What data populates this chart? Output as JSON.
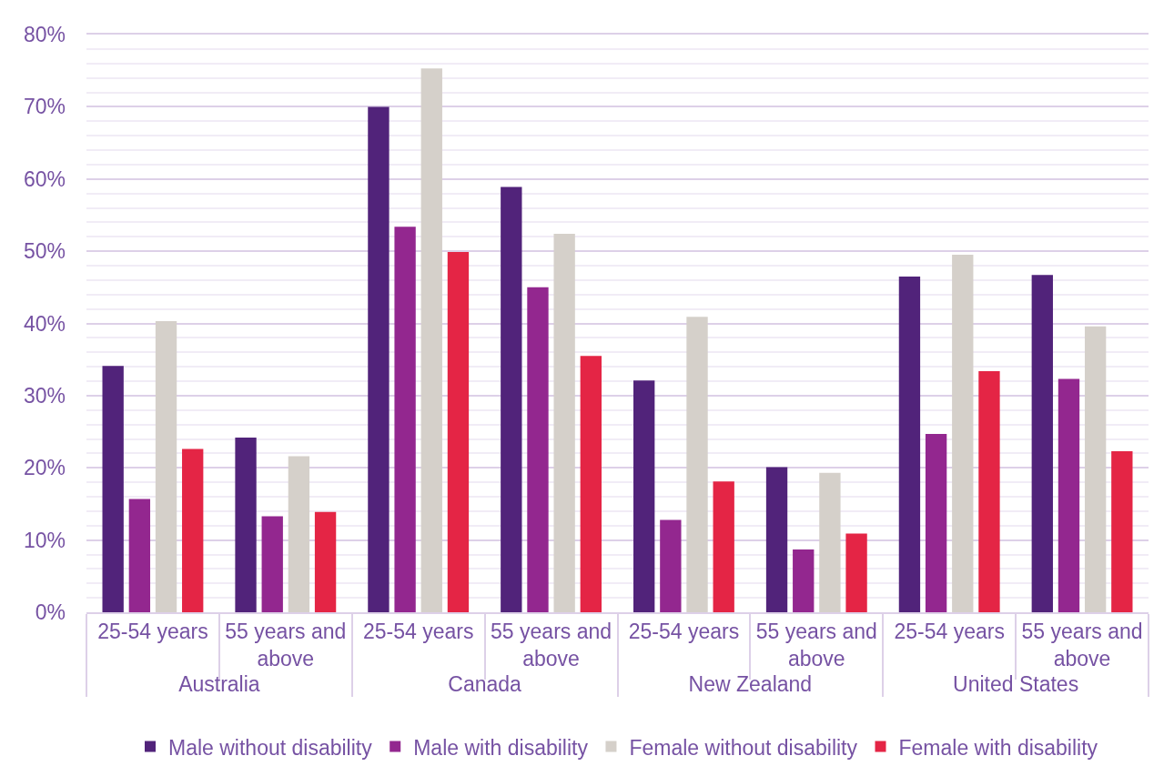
{
  "chart_data": {
    "type": "bar",
    "categories": [
      "25-54 years",
      "55 years and above",
      "25-54 years",
      "55 years and above",
      "25-54 years",
      "55 years and above",
      "25-54 years",
      "55 years and above"
    ],
    "annotations": [
      "Australia",
      "Canada",
      "New Zealand",
      "United States"
    ],
    "series": [
      {
        "name": "Male without disability",
        "color": "#51237a",
        "values": [
          34.1,
          24.2,
          70.0,
          58.9,
          32.1,
          20.1,
          46.5,
          46.7
        ]
      },
      {
        "name": "Male with disability",
        "color": "#93278f",
        "values": [
          15.7,
          13.3,
          53.4,
          45.0,
          12.8,
          8.7,
          24.7,
          32.3
        ]
      },
      {
        "name": "Female without disability",
        "color": "#d5d0ca",
        "values": [
          40.3,
          21.6,
          75.3,
          52.4,
          40.9,
          19.3,
          49.5,
          39.6
        ]
      },
      {
        "name": "Female with disability",
        "color": "#e42545",
        "values": [
          22.6,
          13.9,
          49.9,
          35.5,
          18.1,
          10.9,
          33.4,
          22.3
        ]
      }
    ],
    "ylim": [
      0,
      80
    ],
    "yticks": [
      {
        "value": 0,
        "label": "0%"
      },
      {
        "value": 10,
        "label": "10%"
      },
      {
        "value": 20,
        "label": "20%"
      },
      {
        "value": 30,
        "label": "30%"
      },
      {
        "value": 40,
        "label": "40%"
      },
      {
        "value": 50,
        "label": "50%"
      },
      {
        "value": 60,
        "label": "60%"
      },
      {
        "value": 70,
        "label": "70%"
      },
      {
        "value": 80,
        "label": "80%"
      }
    ],
    "grid": "y",
    "legend": "bottom"
  }
}
